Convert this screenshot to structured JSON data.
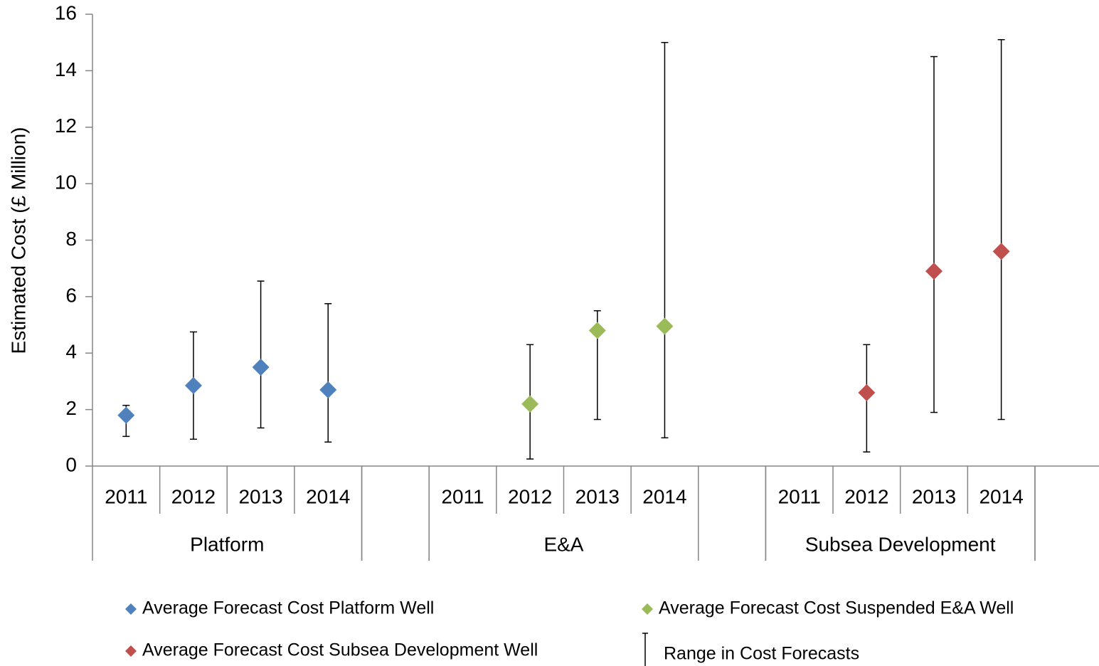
{
  "chart_data": {
    "type": "scatter",
    "y_label": "Estimated Cost (£ Million)",
    "ylim": [
      0,
      16
    ],
    "yticks": [
      0,
      2,
      4,
      6,
      8,
      10,
      12,
      14,
      16
    ],
    "groups": [
      {
        "name": "Platform",
        "categories": [
          "2011",
          "2012",
          "2013",
          "2014"
        ]
      },
      {
        "name": null,
        "categories": [
          null
        ]
      },
      {
        "name": "E&A",
        "categories": [
          "2011",
          "2012",
          "2013",
          "2014"
        ]
      },
      {
        "name": null,
        "categories": [
          null
        ]
      },
      {
        "name": "Subsea Development",
        "categories": [
          "2011",
          "2012",
          "2013",
          "2014"
        ]
      },
      {
        "name": null,
        "categories": [
          null
        ]
      }
    ],
    "range_label": "Range in Cost Forecasts",
    "series": [
      {
        "name": "Average Forecast Cost Platform Well",
        "color": "#4f81bd",
        "values": [
          1.8,
          2.85,
          3.5,
          2.7,
          null,
          null,
          null,
          null,
          null,
          null,
          null,
          null,
          null,
          null,
          null
        ],
        "low": [
          1.05,
          0.95,
          1.35,
          0.85,
          null,
          null,
          null,
          null,
          null,
          null,
          null,
          null,
          null,
          null,
          null
        ],
        "high": [
          2.15,
          4.75,
          6.55,
          5.75,
          null,
          null,
          null,
          null,
          null,
          null,
          null,
          null,
          null,
          null,
          null
        ]
      },
      {
        "name": "Average Forecast Cost Suspended E&A Well",
        "color": "#9bbb59",
        "values": [
          null,
          null,
          null,
          null,
          null,
          null,
          2.2,
          4.8,
          4.95,
          null,
          null,
          null,
          null,
          null,
          null
        ],
        "low": [
          null,
          null,
          null,
          null,
          null,
          null,
          0.25,
          1.65,
          1.0,
          null,
          null,
          null,
          null,
          null,
          null
        ],
        "high": [
          null,
          null,
          null,
          null,
          null,
          null,
          4.3,
          5.5,
          15.0,
          null,
          null,
          null,
          null,
          null,
          null
        ]
      },
      {
        "name": "Average Forecast Cost Subsea Development Well",
        "color": "#c0504d",
        "values": [
          null,
          null,
          null,
          null,
          null,
          null,
          null,
          null,
          null,
          null,
          null,
          2.6,
          6.9,
          7.6,
          null
        ],
        "low": [
          null,
          null,
          null,
          null,
          null,
          null,
          null,
          null,
          null,
          null,
          null,
          0.5,
          1.9,
          1.65,
          null
        ],
        "high": [
          null,
          null,
          null,
          null,
          null,
          null,
          null,
          null,
          null,
          null,
          null,
          4.3,
          14.5,
          15.1,
          null
        ]
      }
    ]
  }
}
